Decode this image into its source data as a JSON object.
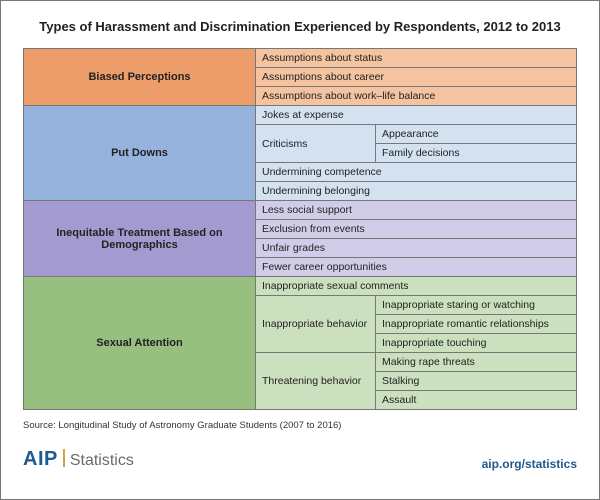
{
  "title": "Types of Harassment and Discrimination Experienced by Respondents, 2012 to 2013",
  "source": "Source: Longitudinal Study of Astronomy Graduate Students (2007 to 2016)",
  "logo": {
    "aip": "AIP",
    "stats": "Statistics"
  },
  "url": "aip.org/statistics",
  "layout": {
    "cat_label_width": 232,
    "sub_label_width": 120
  },
  "colors": {
    "biased": {
      "dark": "#ed9d6a",
      "light": "#f5c39f"
    },
    "put": {
      "dark": "#95b3dd",
      "light": "#d3e1f1"
    },
    "inequit": {
      "dark": "#a39bcf",
      "light": "#d1cde8"
    },
    "sexual": {
      "dark": "#97c080",
      "light": "#cbe0be"
    }
  },
  "categories": [
    {
      "key": "biased",
      "label": "Biased Perceptions",
      "rows": [
        {
          "text": "Assumptions about status"
        },
        {
          "text": "Assumptions about career"
        },
        {
          "text": "Assumptions about work–life balance"
        }
      ]
    },
    {
      "key": "put",
      "label": "Put Downs",
      "rows": [
        {
          "text": "Jokes at expense"
        },
        {
          "sub": "Criticisms",
          "items": [
            "Appearance",
            "Family decisions"
          ]
        },
        {
          "text": "Undermining competence"
        },
        {
          "text": "Undermining belonging"
        }
      ]
    },
    {
      "key": "inequit",
      "label": "Inequitable Treatment Based on Demographics",
      "rows": [
        {
          "text": "Less social support"
        },
        {
          "text": "Exclusion from events"
        },
        {
          "text": "Unfair grades"
        },
        {
          "text": "Fewer career opportunities"
        }
      ]
    },
    {
      "key": "sexual",
      "label": "Sexual Attention",
      "rows": [
        {
          "text": "Inappropriate sexual comments"
        },
        {
          "sub": "Inappropriate behavior",
          "items": [
            "Inappropriate staring or watching",
            "Inappropriate romantic relationships",
            "Inappropriate touching"
          ]
        },
        {
          "sub": "Threatening behavior",
          "items": [
            "Making rape threats",
            "Stalking",
            "Assault"
          ]
        }
      ]
    }
  ]
}
